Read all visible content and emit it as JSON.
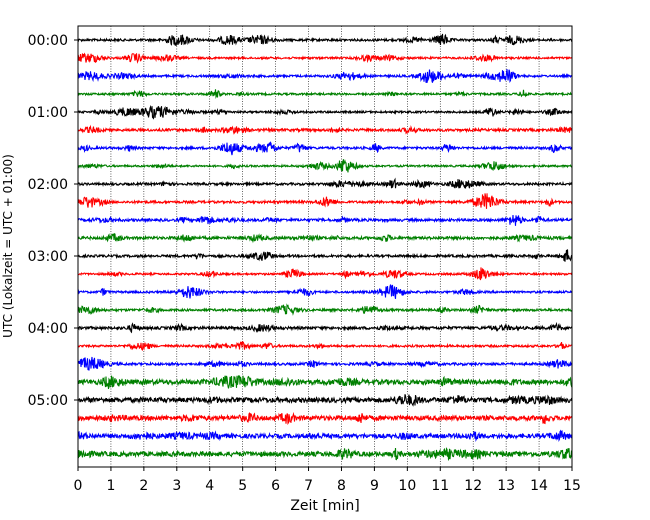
{
  "chart_data": {
    "type": "line",
    "title": "",
    "xlabel": "Zeit  [min]",
    "ylabel": "UTC (Lokalzeit = UTC + 01:00)",
    "xlim": [
      0,
      15
    ],
    "x_ticks": [
      "0",
      "1",
      "2",
      "3",
      "4",
      "5",
      "6",
      "7",
      "8",
      "9",
      "10",
      "11",
      "12",
      "13",
      "14",
      "15"
    ],
    "y_tick_labels": [
      "00:00",
      "01:00",
      "02:00",
      "03:00",
      "04:00",
      "05:00"
    ],
    "trace_interval_min": 15,
    "trace_count": 24,
    "trace_colors": [
      "#000000",
      "#ff0000",
      "#0000ff",
      "#008000"
    ],
    "grid": {
      "vertical_dotted": true,
      "horizontal": false
    },
    "legend": "none"
  }
}
